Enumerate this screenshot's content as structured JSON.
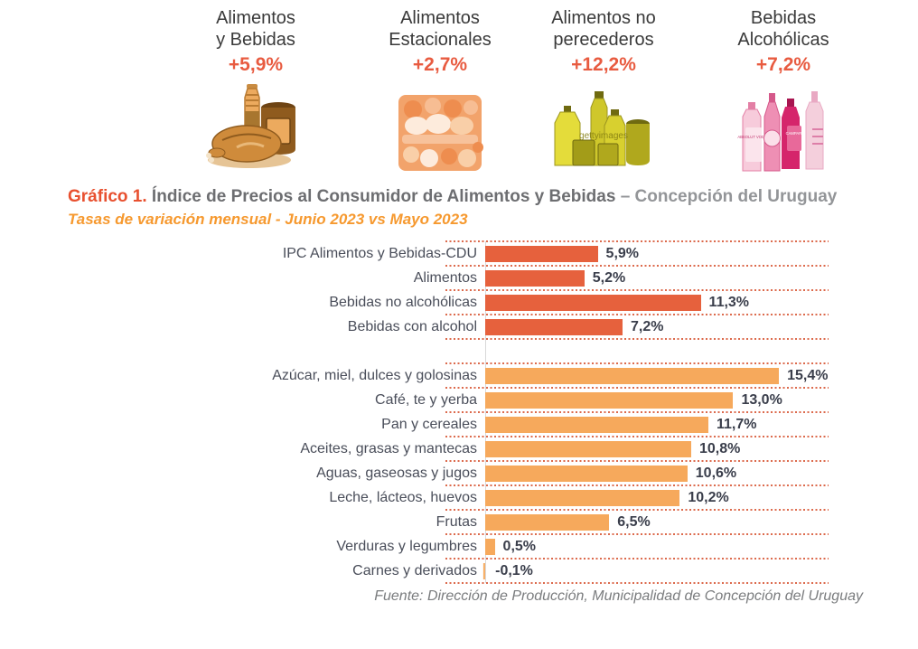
{
  "summary_cards": [
    {
      "title_line1": "Alimentos",
      "title_line2": "y Bebidas",
      "change": "+5,9%",
      "image": "food-groceries-clipart"
    },
    {
      "title_line1": "Alimentos",
      "title_line2": "Estacionales",
      "change": "+2,7%",
      "image": "seasonal-foods-photo"
    },
    {
      "title_line1": "Alimentos no",
      "title_line2": "perecederos",
      "change": "+12,2%",
      "image": "oil-bottles-photo",
      "watermark": "gettyimages"
    },
    {
      "title_line1": "Bebidas",
      "title_line2": "Alcohólicas",
      "change": "+7,2%",
      "image": "liquor-bottles-photo",
      "bottle_labels": {
        "b1": "ABSOLUT VODKA",
        "b3": "CAMPARI"
      }
    }
  ],
  "heading": {
    "prefix": "Gráfico 1.",
    "main": " Índice de Precios al Consumidor de Alimentos y Bebidas ",
    "suffix": "– Concepción del Uruguay",
    "subtitle": "Tasas de variación mensual - Junio 2023 vs Mayo 2023"
  },
  "chart_data": {
    "type": "bar",
    "orientation": "horizontal",
    "xlim": [
      0,
      18
    ],
    "grid": "dotted row separators",
    "value_labels": "outside-end, bold",
    "colors": {
      "aggregate": "#e6613d",
      "component": "#f6a95c",
      "separator": "#dc6a4c",
      "axis": "#d9d9d9"
    },
    "rows": [
      {
        "label": "IPC Alimentos y Bebidas-CDU",
        "value": 5.9,
        "value_label": "5,9%",
        "group": "aggregate",
        "color": "#e6613d"
      },
      {
        "label": "Alimentos",
        "value": 5.2,
        "value_label": "5,2%",
        "group": "aggregate",
        "color": "#e6613d"
      },
      {
        "label": "Bebidas no alcohólicas",
        "value": 11.3,
        "value_label": "11,3%",
        "group": "aggregate",
        "color": "#e6613d"
      },
      {
        "label": "Bebidas con alcohol",
        "value": 7.2,
        "value_label": "7,2%",
        "group": "aggregate",
        "color": "#e6613d"
      },
      {
        "label": "Azúcar, miel, dulces y golosinas",
        "value": 15.4,
        "value_label": "15,4%",
        "group": "component",
        "color": "#f6a95c"
      },
      {
        "label": "Café, te y yerba",
        "value": 13.0,
        "value_label": "13,0%",
        "group": "component",
        "color": "#f6a95c"
      },
      {
        "label": "Pan y cereales",
        "value": 11.7,
        "value_label": "11,7%",
        "group": "component",
        "color": "#f6a95c"
      },
      {
        "label": "Aceites, grasas y mantecas",
        "value": 10.8,
        "value_label": "10,8%",
        "group": "component",
        "color": "#f6a95c"
      },
      {
        "label": "Aguas, gaseosas y jugos",
        "value": 10.6,
        "value_label": "10,6%",
        "group": "component",
        "color": "#f6a95c"
      },
      {
        "label": "Leche, lácteos, huevos",
        "value": 10.2,
        "value_label": "10,2%",
        "group": "component",
        "color": "#f6a95c"
      },
      {
        "label": "Frutas",
        "value": 6.5,
        "value_label": "6,5%",
        "group": "component",
        "color": "#f6a95c"
      },
      {
        "label": "Verduras y legumbres",
        "value": 0.5,
        "value_label": "0,5%",
        "group": "component",
        "color": "#f6a95c"
      },
      {
        "label": "Carnes y derivados",
        "value": -0.1,
        "value_label": "-0,1%",
        "group": "component",
        "color": "#f6a95c"
      }
    ]
  },
  "footer": {
    "source": "Fuente: Dirección de Producción, Municipalidad de Concepción del Uruguay"
  },
  "theme": {
    "heading_prefix": "#e8502f",
    "heading_main": "#6d6e71",
    "heading_suffix": "#939598",
    "subtitle": "#f6992f",
    "card_change": "#e85b40",
    "card_title": "#3a3a3a",
    "label_text": "#4a4e5a",
    "value_text": "#3a3e4b",
    "footer_text": "#7a7c7e"
  }
}
